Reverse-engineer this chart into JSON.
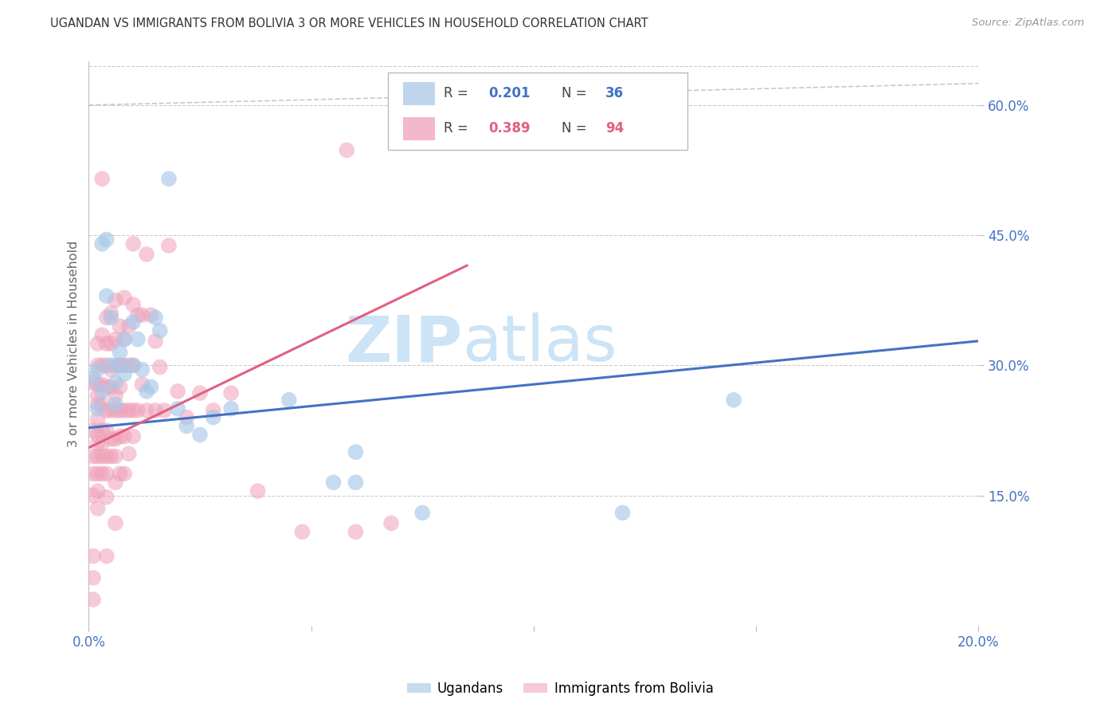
{
  "title": "UGANDAN VS IMMIGRANTS FROM BOLIVIA 3 OR MORE VEHICLES IN HOUSEHOLD CORRELATION CHART",
  "source": "Source: ZipAtlas.com",
  "ylabel": "3 or more Vehicles in Household",
  "x_min": 0.0,
  "x_max": 0.2,
  "y_min": 0.0,
  "y_max": 0.65,
  "y_ticks_right": [
    0.15,
    0.3,
    0.45,
    0.6
  ],
  "y_tick_labels_right": [
    "15.0%",
    "30.0%",
    "45.0%",
    "60.0%"
  ],
  "ugandan_color": "#a8c8e8",
  "bolivia_color": "#f0a0b8",
  "blue_line": {
    "x0": 0.0,
    "y0": 0.228,
    "x1": 0.2,
    "y1": 0.328
  },
  "pink_line": {
    "x0": 0.0,
    "y0": 0.205,
    "x1": 0.085,
    "y1": 0.415
  },
  "dash_line": {
    "x0": 0.0,
    "y0": 0.6,
    "x1": 0.2,
    "y1": 0.625
  },
  "ugandan_points": [
    [
      0.001,
      0.285
    ],
    [
      0.002,
      0.295
    ],
    [
      0.002,
      0.25
    ],
    [
      0.003,
      0.44
    ],
    [
      0.003,
      0.27
    ],
    [
      0.004,
      0.445
    ],
    [
      0.004,
      0.38
    ],
    [
      0.005,
      0.355
    ],
    [
      0.005,
      0.3
    ],
    [
      0.006,
      0.28
    ],
    [
      0.006,
      0.255
    ],
    [
      0.007,
      0.315
    ],
    [
      0.007,
      0.3
    ],
    [
      0.008,
      0.33
    ],
    [
      0.008,
      0.29
    ],
    [
      0.01,
      0.35
    ],
    [
      0.01,
      0.3
    ],
    [
      0.011,
      0.33
    ],
    [
      0.012,
      0.295
    ],
    [
      0.013,
      0.27
    ],
    [
      0.014,
      0.275
    ],
    [
      0.015,
      0.355
    ],
    [
      0.016,
      0.34
    ],
    [
      0.018,
      0.515
    ],
    [
      0.02,
      0.25
    ],
    [
      0.022,
      0.23
    ],
    [
      0.025,
      0.22
    ],
    [
      0.028,
      0.24
    ],
    [
      0.032,
      0.25
    ],
    [
      0.045,
      0.26
    ],
    [
      0.055,
      0.165
    ],
    [
      0.06,
      0.165
    ],
    [
      0.06,
      0.2
    ],
    [
      0.075,
      0.13
    ],
    [
      0.12,
      0.13
    ],
    [
      0.145,
      0.26
    ]
  ],
  "bolivia_points": [
    [
      0.001,
      0.28
    ],
    [
      0.001,
      0.225
    ],
    [
      0.001,
      0.195
    ],
    [
      0.001,
      0.175
    ],
    [
      0.001,
      0.15
    ],
    [
      0.001,
      0.08
    ],
    [
      0.001,
      0.055
    ],
    [
      0.001,
      0.03
    ],
    [
      0.002,
      0.325
    ],
    [
      0.002,
      0.3
    ],
    [
      0.002,
      0.278
    ],
    [
      0.002,
      0.265
    ],
    [
      0.002,
      0.255
    ],
    [
      0.002,
      0.238
    ],
    [
      0.002,
      0.22
    ],
    [
      0.002,
      0.21
    ],
    [
      0.002,
      0.195
    ],
    [
      0.002,
      0.175
    ],
    [
      0.002,
      0.155
    ],
    [
      0.002,
      0.135
    ],
    [
      0.003,
      0.335
    ],
    [
      0.003,
      0.3
    ],
    [
      0.003,
      0.278
    ],
    [
      0.003,
      0.255
    ],
    [
      0.003,
      0.225
    ],
    [
      0.003,
      0.21
    ],
    [
      0.003,
      0.195
    ],
    [
      0.003,
      0.175
    ],
    [
      0.003,
      0.515
    ],
    [
      0.004,
      0.355
    ],
    [
      0.004,
      0.325
    ],
    [
      0.004,
      0.3
    ],
    [
      0.004,
      0.275
    ],
    [
      0.004,
      0.248
    ],
    [
      0.004,
      0.225
    ],
    [
      0.004,
      0.195
    ],
    [
      0.004,
      0.175
    ],
    [
      0.004,
      0.148
    ],
    [
      0.004,
      0.08
    ],
    [
      0.005,
      0.36
    ],
    [
      0.005,
      0.325
    ],
    [
      0.005,
      0.295
    ],
    [
      0.005,
      0.275
    ],
    [
      0.005,
      0.248
    ],
    [
      0.005,
      0.215
    ],
    [
      0.005,
      0.195
    ],
    [
      0.006,
      0.375
    ],
    [
      0.006,
      0.33
    ],
    [
      0.006,
      0.3
    ],
    [
      0.006,
      0.265
    ],
    [
      0.006,
      0.248
    ],
    [
      0.006,
      0.215
    ],
    [
      0.006,
      0.195
    ],
    [
      0.006,
      0.165
    ],
    [
      0.006,
      0.118
    ],
    [
      0.007,
      0.345
    ],
    [
      0.007,
      0.3
    ],
    [
      0.007,
      0.275
    ],
    [
      0.007,
      0.248
    ],
    [
      0.007,
      0.218
    ],
    [
      0.007,
      0.175
    ],
    [
      0.008,
      0.378
    ],
    [
      0.008,
      0.33
    ],
    [
      0.008,
      0.3
    ],
    [
      0.008,
      0.248
    ],
    [
      0.008,
      0.218
    ],
    [
      0.008,
      0.175
    ],
    [
      0.009,
      0.345
    ],
    [
      0.009,
      0.3
    ],
    [
      0.009,
      0.248
    ],
    [
      0.009,
      0.198
    ],
    [
      0.01,
      0.44
    ],
    [
      0.01,
      0.37
    ],
    [
      0.01,
      0.3
    ],
    [
      0.01,
      0.248
    ],
    [
      0.01,
      0.218
    ],
    [
      0.011,
      0.358
    ],
    [
      0.011,
      0.248
    ],
    [
      0.012,
      0.358
    ],
    [
      0.012,
      0.278
    ],
    [
      0.013,
      0.428
    ],
    [
      0.013,
      0.248
    ],
    [
      0.014,
      0.358
    ],
    [
      0.015,
      0.328
    ],
    [
      0.015,
      0.248
    ],
    [
      0.016,
      0.298
    ],
    [
      0.017,
      0.248
    ],
    [
      0.018,
      0.438
    ],
    [
      0.02,
      0.27
    ],
    [
      0.022,
      0.24
    ],
    [
      0.025,
      0.268
    ],
    [
      0.028,
      0.248
    ],
    [
      0.032,
      0.268
    ],
    [
      0.038,
      0.155
    ],
    [
      0.048,
      0.108
    ],
    [
      0.058,
      0.548
    ],
    [
      0.06,
      0.108
    ],
    [
      0.068,
      0.118
    ]
  ],
  "background_color": "#ffffff",
  "grid_color": "#cccccc",
  "title_color": "#333333",
  "axis_label_color": "#4472c4",
  "watermark_color": "#cce4f5"
}
